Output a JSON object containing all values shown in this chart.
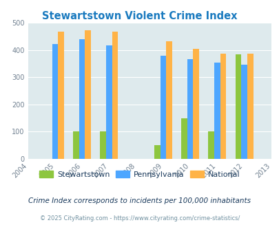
{
  "title": "Stewartstown Violent Crime Index",
  "all_years": [
    2004,
    2005,
    2006,
    2007,
    2008,
    2009,
    2010,
    2011,
    2012,
    2013
  ],
  "bar_years": [
    2005,
    2006,
    2007,
    2009,
    2010,
    2011,
    2012
  ],
  "stewartstown": [
    0,
    100,
    100,
    50,
    150,
    100,
    383
  ],
  "pennsylvania": [
    422,
    440,
    417,
    380,
    366,
    353,
    347
  ],
  "national": [
    468,
    472,
    466,
    432,
    405,
    387,
    387
  ],
  "color_stewartstown": "#8dc63f",
  "color_pennsylvania": "#4da6ff",
  "color_national": "#ffb347",
  "color_title": "#1a7abf",
  "color_subtitle": "#1a3a5c",
  "color_footnote": "#7090a0",
  "bg_plot": "#deeaed",
  "ylim": [
    0,
    500
  ],
  "yticks": [
    0,
    100,
    200,
    300,
    400,
    500
  ],
  "bar_width": 0.22,
  "legend_labels": [
    "Stewartstown",
    "Pennsylvania",
    "National"
  ],
  "subtitle": "Crime Index corresponds to incidents per 100,000 inhabitants",
  "footnote": "© 2025 CityRating.com - https://www.cityrating.com/crime-statistics/"
}
